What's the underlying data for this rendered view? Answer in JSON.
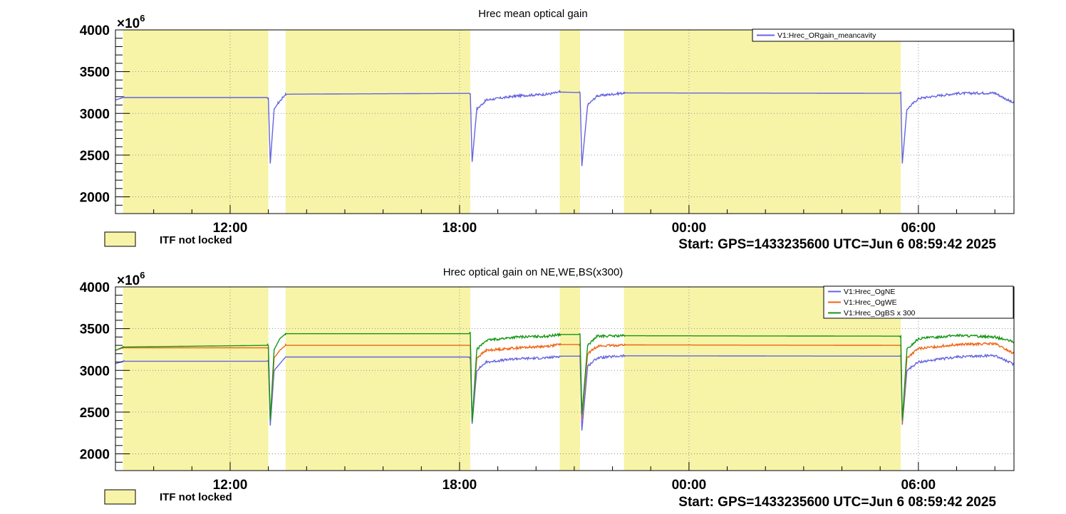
{
  "colors": {
    "not_locked": "#f7f4a8",
    "NE": "#6464e0",
    "WE": "#f06414",
    "BS": "#159615",
    "mean": "#6464e0"
  },
  "footer": {
    "lock_label": "ITF not locked",
    "start": "Start: GPS=1433235600 UTC=Jun  6 08:59:42 2025"
  },
  "chart_data": [
    {
      "type": "line",
      "title": "Hrec mean optical gain",
      "y_exponent_label": "×10",
      "y_exponent_power": "6",
      "xlim": [
        9.0,
        8.3333
      ],
      "x_span_hours": 23.5,
      "ylim": [
        1800,
        4000
      ],
      "yticks": [
        2000,
        2500,
        3000,
        3500,
        4000
      ],
      "xticks": [
        {
          "label": "12:00",
          "h": 3
        },
        {
          "label": "18:00",
          "h": 9
        },
        {
          "label": "00:00",
          "h": 15
        },
        {
          "label": "06:00",
          "h": 21
        }
      ],
      "not_locked_intervals_h": [
        [
          0.2,
          4.0
        ],
        [
          4.45,
          9.28
        ],
        [
          11.62,
          12.15
        ],
        [
          13.3,
          20.54
        ]
      ],
      "series": [
        {
          "name": "V1:Hrec_ORgain_meancavity",
          "key": "mean",
          "points_h": [
            [
              0.0,
              3160
            ],
            [
              0.2,
              3190
            ],
            [
              4.0,
              3190
            ],
            [
              4.05,
              2400
            ],
            [
              4.15,
              3050
            ],
            [
              4.25,
              3120
            ],
            [
              4.45,
              3230
            ],
            [
              9.28,
              3240
            ],
            [
              9.33,
              2420
            ],
            [
              9.45,
              3050
            ],
            [
              9.7,
              3160
            ],
            [
              10.5,
              3210
            ],
            [
              11.3,
              3230
            ],
            [
              11.62,
              3255
            ],
            [
              12.15,
              3250
            ],
            [
              12.2,
              2370
            ],
            [
              12.35,
              3100
            ],
            [
              12.6,
              3210
            ],
            [
              13.3,
              3245
            ],
            [
              20.54,
              3240
            ],
            [
              20.58,
              2400
            ],
            [
              20.7,
              3050
            ],
            [
              21.0,
              3180
            ],
            [
              22.0,
              3240
            ],
            [
              23.0,
              3245
            ],
            [
              23.5,
              3120
            ]
          ]
        }
      ]
    },
    {
      "type": "line",
      "title": "Hrec optical gain on NE,WE,BS(x300)",
      "y_exponent_label": "×10",
      "y_exponent_power": "6",
      "xlim": [
        9.0,
        8.3333
      ],
      "x_span_hours": 23.5,
      "ylim": [
        1800,
        4000
      ],
      "yticks": [
        2000,
        2500,
        3000,
        3500,
        4000
      ],
      "xticks": [
        {
          "label": "12:00",
          "h": 3
        },
        {
          "label": "18:00",
          "h": 9
        },
        {
          "label": "00:00",
          "h": 15
        },
        {
          "label": "06:00",
          "h": 21
        }
      ],
      "not_locked_intervals_h": [
        [
          0.2,
          4.0
        ],
        [
          4.45,
          9.28
        ],
        [
          11.62,
          12.15
        ],
        [
          13.3,
          20.54
        ]
      ],
      "series": [
        {
          "name": "V1:Hrec_OgNE",
          "key": "NE",
          "points_h": [
            [
              0.0,
              3080
            ],
            [
              0.2,
              3110
            ],
            [
              4.0,
              3110
            ],
            [
              4.05,
              2340
            ],
            [
              4.15,
              3000
            ],
            [
              4.3,
              3080
            ],
            [
              4.45,
              3160
            ],
            [
              9.28,
              3160
            ],
            [
              9.33,
              2360
            ],
            [
              9.45,
              3000
            ],
            [
              9.7,
              3100
            ],
            [
              10.5,
              3140
            ],
            [
              11.3,
              3150
            ],
            [
              11.62,
              3170
            ],
            [
              12.15,
              3170
            ],
            [
              12.2,
              2280
            ],
            [
              12.35,
              3050
            ],
            [
              12.6,
              3150
            ],
            [
              13.3,
              3175
            ],
            [
              20.54,
              3170
            ],
            [
              20.58,
              2350
            ],
            [
              20.7,
              3000
            ],
            [
              21.0,
              3100
            ],
            [
              22.0,
              3160
            ],
            [
              23.0,
              3180
            ],
            [
              23.5,
              3070
            ]
          ]
        },
        {
          "name": "V1:Hrec_OgWE",
          "key": "WE",
          "points_h": [
            [
              0.0,
              3240
            ],
            [
              0.2,
              3270
            ],
            [
              4.0,
              3270
            ],
            [
              4.05,
              2400
            ],
            [
              4.15,
              3150
            ],
            [
              4.3,
              3240
            ],
            [
              4.45,
              3300
            ],
            [
              9.28,
              3300
            ],
            [
              9.33,
              2400
            ],
            [
              9.45,
              3150
            ],
            [
              9.7,
              3240
            ],
            [
              10.5,
              3270
            ],
            [
              11.3,
              3290
            ],
            [
              11.62,
              3310
            ],
            [
              12.15,
              3310
            ],
            [
              12.2,
              2420
            ],
            [
              12.35,
              3200
            ],
            [
              12.6,
              3290
            ],
            [
              13.3,
              3305
            ],
            [
              20.54,
              3300
            ],
            [
              20.58,
              2370
            ],
            [
              20.7,
              3150
            ],
            [
              21.0,
              3260
            ],
            [
              22.0,
              3310
            ],
            [
              23.0,
              3320
            ],
            [
              23.5,
              3200
            ]
          ]
        },
        {
          "name": "V1:Hrec_OgBS x 300",
          "key": "BS",
          "points_h": [
            [
              0.0,
              3240
            ],
            [
              0.2,
              3280
            ],
            [
              4.0,
              3300
            ],
            [
              4.05,
              2400
            ],
            [
              4.15,
              3250
            ],
            [
              4.3,
              3380
            ],
            [
              4.45,
              3440
            ],
            [
              9.28,
              3440
            ],
            [
              9.33,
              2380
            ],
            [
              9.45,
              3250
            ],
            [
              9.7,
              3360
            ],
            [
              10.5,
              3400
            ],
            [
              11.3,
              3410
            ],
            [
              11.62,
              3430
            ],
            [
              12.15,
              3430
            ],
            [
              12.2,
              2470
            ],
            [
              12.35,
              3300
            ],
            [
              12.6,
              3410
            ],
            [
              13.3,
              3415
            ],
            [
              20.54,
              3410
            ],
            [
              20.58,
              2400
            ],
            [
              20.7,
              3250
            ],
            [
              21.0,
              3380
            ],
            [
              22.0,
              3420
            ],
            [
              23.0,
              3400
            ],
            [
              23.5,
              3340
            ]
          ]
        }
      ]
    }
  ]
}
